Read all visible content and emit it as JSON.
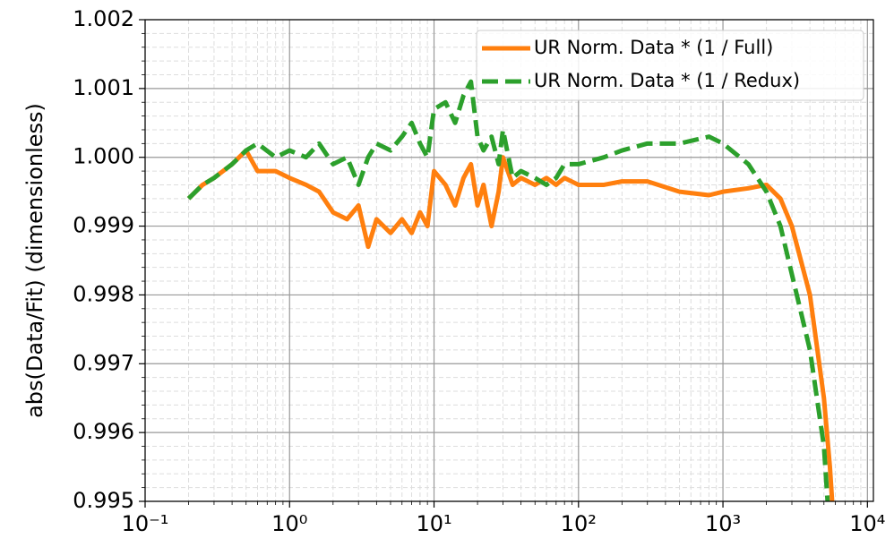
{
  "chart_data": {
    "type": "line",
    "ylabel": "abs(Data/Fit) (dimensionless)",
    "xscale": "log",
    "grid": true,
    "minor_grid": true,
    "legend": "upper right",
    "xlim": [
      0.1,
      11000
    ],
    "ylim": [
      0.995,
      1.002
    ],
    "xticks": [
      {
        "value": 0.1,
        "label": "10⁻¹"
      },
      {
        "value": 1,
        "label": "10⁰"
      },
      {
        "value": 10,
        "label": "10¹"
      },
      {
        "value": 100,
        "label": "10²"
      },
      {
        "value": 1000,
        "label": "10³"
      },
      {
        "value": 10000,
        "label": "10⁴"
      }
    ],
    "yticks": [
      0.995,
      0.996,
      0.997,
      0.998,
      0.999,
      {
        "value": 1,
        "label": "1.000"
      },
      1.001,
      1.002
    ],
    "series": [
      {
        "name": "UR Norm. Data * (1 / Full)",
        "color": "#ff7f0e",
        "style": "solid",
        "x": [
          0.2,
          0.25,
          0.3,
          0.4,
          0.5,
          0.6,
          0.8,
          1.0,
          1.3,
          1.6,
          2.0,
          2.5,
          3.0,
          3.5,
          4.0,
          5.0,
          6.0,
          7.0,
          8.0,
          9.0,
          10,
          12,
          14,
          16,
          18,
          20,
          22,
          25,
          28,
          30,
          35,
          40,
          50,
          60,
          70,
          80,
          100,
          150,
          200,
          300,
          500,
          800,
          1000,
          1500,
          2000,
          2500,
          3000,
          4000,
          5000,
          5500,
          5700
        ],
        "values": [
          0.9994,
          0.9996,
          0.9997,
          0.9999,
          1.0001,
          0.9998,
          0.9998,
          0.9997,
          0.9996,
          0.9995,
          0.9992,
          0.9991,
          0.9993,
          0.9987,
          0.9991,
          0.9989,
          0.9991,
          0.9989,
          0.9992,
          0.999,
          0.9998,
          0.9996,
          0.9993,
          0.9997,
          0.9999,
          0.9993,
          0.9996,
          0.999,
          0.9995,
          1.0,
          0.9996,
          0.9997,
          0.9996,
          0.9997,
          0.9996,
          0.9997,
          0.9996,
          0.9996,
          0.99965,
          0.99965,
          0.9995,
          0.99945,
          0.9995,
          0.99955,
          0.9996,
          0.9994,
          0.999,
          0.998,
          0.9965,
          0.9955,
          0.995
        ]
      },
      {
        "name": "UR Norm. Data * (1 / Redux)",
        "color": "#2ca02c",
        "style": "dashed",
        "x": [
          0.2,
          0.25,
          0.3,
          0.4,
          0.5,
          0.6,
          0.8,
          1.0,
          1.3,
          1.6,
          2.0,
          2.5,
          3.0,
          3.5,
          4.0,
          5.0,
          6.0,
          7.0,
          8.0,
          9.0,
          10,
          12,
          14,
          16,
          18,
          20,
          22,
          25,
          28,
          30,
          35,
          40,
          50,
          60,
          70,
          80,
          100,
          150,
          200,
          300,
          500,
          800,
          1000,
          1500,
          2000,
          2500,
          3000,
          4000,
          5000,
          5300
        ],
        "values": [
          0.9994,
          0.9996,
          0.9997,
          0.9999,
          1.0001,
          1.0002,
          1.0,
          1.0001,
          1.0,
          1.0002,
          0.9999,
          1.0,
          0.9996,
          1.0,
          1.0002,
          1.0001,
          1.0003,
          1.0005,
          1.0002,
          1.0,
          1.0007,
          1.0008,
          1.0005,
          1.0009,
          1.0011,
          1.0003,
          1.0001,
          1.0003,
          0.9999,
          1.0004,
          0.9997,
          0.9998,
          0.9997,
          0.9996,
          0.9997,
          0.9999,
          0.9999,
          1.0,
          1.0001,
          1.0002,
          1.0002,
          1.0003,
          1.0002,
          0.9999,
          0.9995,
          0.999,
          0.9983,
          0.9972,
          0.9958,
          0.995
        ]
      }
    ]
  }
}
